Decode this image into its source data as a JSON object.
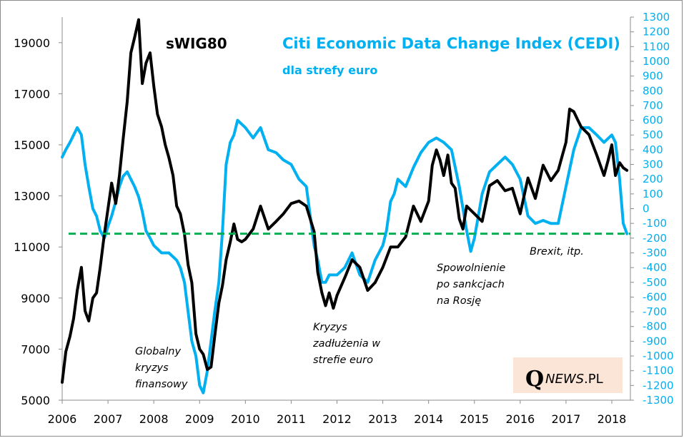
{
  "chart_data": {
    "type": "line",
    "title": "sWIG80",
    "secondary_title": "Citi Economic Data Change Index (CEDI)",
    "secondary_subtitle": "dla strefy euro",
    "xlabel": "",
    "ylabel": "",
    "x_ticks": [
      "2006",
      "2007",
      "2008",
      "2009",
      "2010",
      "2011",
      "2012",
      "2013",
      "2014",
      "2015",
      "2016",
      "2017",
      "2018"
    ],
    "xlim": [
      2006.0,
      2018.4
    ],
    "y_left": {
      "ticks": [
        "5000",
        "7000",
        "9000",
        "11000",
        "13000",
        "15000",
        "17000",
        "19000"
      ],
      "ylim": [
        5000,
        20000
      ]
    },
    "y_right": {
      "ticks": [
        "1300",
        "1200",
        "1100",
        "1000",
        "900",
        "800",
        "700",
        "600",
        "500",
        "400",
        "300",
        "200",
        "100",
        "0",
        "-100",
        "-200",
        "-300",
        "-400",
        "-500",
        "-600",
        "-700",
        "-800",
        "-900",
        "-1000",
        "-1100",
        "-1200",
        "-1300"
      ],
      "ylim": [
        -1300,
        1300
      ]
    },
    "grid": false,
    "series": [
      {
        "name": "sWIG80",
        "axis": "left",
        "color": "#000000",
        "x": [
          2006.0,
          2006.08,
          2006.17,
          2006.25,
          2006.33,
          2006.42,
          2006.5,
          2006.58,
          2006.67,
          2006.75,
          2006.83,
          2006.92,
          2007.0,
          2007.08,
          2007.17,
          2007.25,
          2007.33,
          2007.42,
          2007.5,
          2007.58,
          2007.67,
          2007.75,
          2007.83,
          2007.92,
          2008.0,
          2008.08,
          2008.17,
          2008.25,
          2008.33,
          2008.42,
          2008.5,
          2008.58,
          2008.67,
          2008.75,
          2008.83,
          2008.92,
          2009.0,
          2009.08,
          2009.17,
          2009.25,
          2009.33,
          2009.42,
          2009.5,
          2009.58,
          2009.67,
          2009.75,
          2009.83,
          2009.92,
          2010.0,
          2010.17,
          2010.33,
          2010.5,
          2010.67,
          2010.83,
          2011.0,
          2011.17,
          2011.33,
          2011.5,
          2011.58,
          2011.67,
          2011.75,
          2011.83,
          2011.92,
          2012.0,
          2012.17,
          2012.33,
          2012.5,
          2012.67,
          2012.83,
          2013.0,
          2013.17,
          2013.33,
          2013.5,
          2013.67,
          2013.83,
          2014.0,
          2014.08,
          2014.17,
          2014.25,
          2014.33,
          2014.42,
          2014.5,
          2014.58,
          2014.67,
          2014.75,
          2014.83,
          2015.0,
          2015.17,
          2015.33,
          2015.5,
          2015.67,
          2015.83,
          2016.0,
          2016.17,
          2016.33,
          2016.5,
          2016.67,
          2016.83,
          2017.0,
          2017.08,
          2017.17,
          2017.25,
          2017.33,
          2017.5,
          2017.67,
          2017.83,
          2017.92,
          2018.0,
          2018.08,
          2018.17,
          2018.25,
          2018.33
        ],
        "values": [
          5700,
          6900,
          7500,
          8200,
          9300,
          10200,
          8500,
          8100,
          9000,
          9200,
          10200,
          11500,
          12500,
          13500,
          12700,
          13800,
          15200,
          16700,
          18600,
          19200,
          19900,
          17400,
          18200,
          18600,
          17300,
          16200,
          15700,
          15000,
          14500,
          13800,
          12600,
          12300,
          11500,
          10300,
          9600,
          7600,
          7000,
          6800,
          6200,
          6300,
          7500,
          8800,
          9500,
          10500,
          11200,
          11900,
          11300,
          11200,
          11300,
          11700,
          12600,
          11700,
          12000,
          12300,
          12700,
          12800,
          12600,
          11600,
          10000,
          9200,
          8700,
          9200,
          8600,
          9100,
          9800,
          10500,
          10200,
          9300,
          9600,
          10200,
          11000,
          11000,
          11400,
          12600,
          12000,
          12800,
          14200,
          14800,
          14400,
          13800,
          14600,
          13500,
          13300,
          12100,
          11700,
          12600,
          12300,
          12000,
          13400,
          13600,
          13200,
          13300,
          12300,
          13700,
          12900,
          14200,
          13600,
          14000,
          15100,
          16400,
          16300,
          16000,
          15700,
          15400,
          14600,
          13800,
          14400,
          15000,
          13800,
          14300,
          14100,
          14000
        ]
      },
      {
        "name": "Citi Economic Data Change Index (CEDI) dla strefy euro",
        "axis": "right",
        "color": "#00b0f0",
        "x": [
          2006.0,
          2006.08,
          2006.17,
          2006.25,
          2006.33,
          2006.42,
          2006.5,
          2006.58,
          2006.67,
          2006.75,
          2006.83,
          2006.92,
          2007.0,
          2007.08,
          2007.17,
          2007.25,
          2007.33,
          2007.42,
          2007.5,
          2007.58,
          2007.67,
          2007.75,
          2007.83,
          2007.92,
          2008.0,
          2008.17,
          2008.33,
          2008.5,
          2008.58,
          2008.67,
          2008.75,
          2008.83,
          2008.92,
          2009.0,
          2009.08,
          2009.17,
          2009.25,
          2009.33,
          2009.42,
          2009.5,
          2009.58,
          2009.67,
          2009.75,
          2009.83,
          2010.0,
          2010.17,
          2010.33,
          2010.5,
          2010.67,
          2010.83,
          2011.0,
          2011.17,
          2011.33,
          2011.5,
          2011.58,
          2011.67,
          2011.75,
          2011.83,
          2012.0,
          2012.17,
          2012.33,
          2012.5,
          2012.67,
          2012.83,
          2013.0,
          2013.08,
          2013.17,
          2013.25,
          2013.33,
          2013.5,
          2013.67,
          2013.83,
          2014.0,
          2014.17,
          2014.33,
          2014.5,
          2014.67,
          2014.83,
          2014.92,
          2015.0,
          2015.17,
          2015.33,
          2015.5,
          2015.67,
          2015.83,
          2016.0,
          2016.17,
          2016.33,
          2016.5,
          2016.67,
          2016.83,
          2017.0,
          2017.17,
          2017.33,
          2017.5,
          2017.67,
          2017.83,
          2018.0,
          2018.08,
          2018.17,
          2018.25,
          2018.33
        ],
        "values": [
          350,
          400,
          450,
          500,
          550,
          500,
          300,
          150,
          0,
          -50,
          -150,
          -200,
          -120,
          -50,
          50,
          150,
          220,
          250,
          200,
          150,
          80,
          -20,
          -150,
          -200,
          -250,
          -300,
          -300,
          -350,
          -400,
          -500,
          -700,
          -900,
          -1000,
          -1200,
          -1250,
          -1100,
          -900,
          -700,
          -500,
          -150,
          300,
          450,
          500,
          600,
          550,
          480,
          550,
          400,
          380,
          330,
          300,
          200,
          150,
          -250,
          -350,
          -500,
          -500,
          -450,
          -450,
          -400,
          -300,
          -450,
          -500,
          -350,
          -250,
          -150,
          50,
          100,
          200,
          150,
          280,
          380,
          450,
          480,
          450,
          400,
          150,
          -150,
          -290,
          -200,
          100,
          250,
          300,
          350,
          300,
          200,
          -50,
          -100,
          -80,
          -100,
          -100,
          150,
          400,
          550,
          550,
          500,
          450,
          500,
          450,
          200,
          -100,
          -170
        ]
      }
    ],
    "reference_line": {
      "style": "dashed",
      "color": "#00b050",
      "right_axis_value": -170
    },
    "annotations": [
      {
        "lines": [
          "Globalny",
          "kryzys",
          "finansowy"
        ]
      },
      {
        "lines": [
          "Kryzys",
          "zadłużenia w",
          "strefie euro"
        ]
      },
      {
        "lines": [
          "Spowolnienie",
          "po sankcjach",
          "na Rosję"
        ]
      },
      {
        "lines": [
          "Brexit, itp."
        ]
      }
    ],
    "colors": {
      "swig80": "#000000",
      "cedi": "#00b0f0",
      "reference": "#00b050",
      "logo_bg": "#fbe5d6"
    }
  },
  "logo": {
    "q": "Q",
    "news": "NEWS",
    "pl": ".PL"
  }
}
